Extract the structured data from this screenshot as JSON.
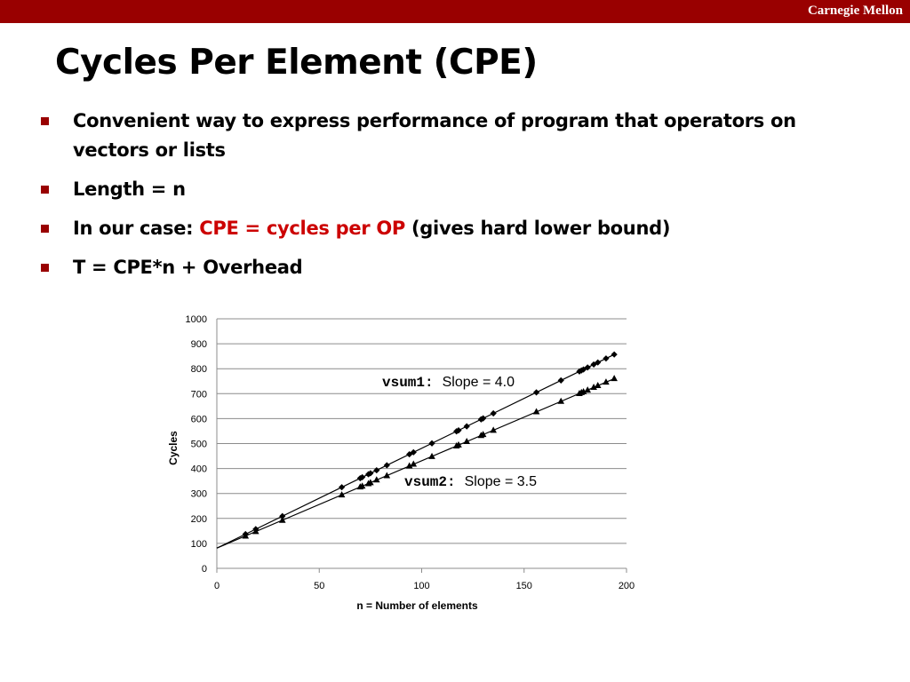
{
  "header": {
    "brand": "Carnegie Mellon"
  },
  "slide": {
    "title": "Cycles Per Element (CPE)",
    "bullets": [
      {
        "text": "Convenient way to express performance of program that operators on vectors or lists"
      },
      {
        "text": "Length = n"
      },
      {
        "prefix": "In our case: ",
        "highlight": "CPE = cycles per OP",
        "suffix": " (gives hard lower bound)"
      },
      {
        "text": "T = CPE*n + Overhead"
      }
    ]
  },
  "colors": {
    "accent": "#990000",
    "highlight": "#cc0000"
  },
  "chart_data": {
    "type": "scatter",
    "xlabel": "n = Number of elements",
    "ylabel": "Cycles",
    "xlim": [
      0,
      200
    ],
    "ylim": [
      0,
      1000
    ],
    "xticks": [
      0,
      50,
      100,
      150,
      200
    ],
    "yticks": [
      0,
      100,
      200,
      300,
      400,
      500,
      600,
      700,
      800,
      900,
      1000
    ],
    "grid": "horizontal",
    "series": [
      {
        "name": "vsum1",
        "marker": "diamond",
        "x": [
          14,
          19,
          32,
          61,
          70,
          71,
          74,
          75,
          78,
          83,
          94,
          96,
          105,
          117,
          118,
          122,
          129,
          130,
          135,
          156,
          168,
          177,
          178,
          179,
          181,
          184,
          186,
          190,
          194
        ],
        "y": [
          137,
          157,
          209,
          325,
          361,
          365,
          377,
          381,
          393,
          413,
          457,
          465,
          501,
          549,
          553,
          569,
          597,
          601,
          621,
          705,
          753,
          789,
          793,
          797,
          805,
          817,
          825,
          841,
          857
        ],
        "slope": 4.0,
        "intercept": 81
      },
      {
        "name": "vsum2",
        "marker": "triangle",
        "x": [
          14,
          19,
          32,
          61,
          70,
          71,
          74,
          75,
          78,
          83,
          94,
          96,
          105,
          117,
          118,
          122,
          129,
          130,
          135,
          156,
          168,
          177,
          178,
          179,
          181,
          184,
          186,
          190,
          194
        ],
        "y": [
          130,
          148,
          193,
          295,
          327,
          330,
          340,
          344,
          355,
          372,
          411,
          418,
          449,
          491,
          495,
          509,
          533,
          537,
          554,
          628,
          670,
          701,
          705,
          708,
          715,
          726,
          733,
          747,
          761
        ],
        "slope": 3.5,
        "intercept": 81
      }
    ],
    "annotations": [
      {
        "series": "vsum1",
        "label": "vsum1:",
        "text": "Slope = 4.0"
      },
      {
        "series": "vsum2",
        "label": "vsum2:",
        "text": "Slope = 3.5"
      }
    ]
  }
}
